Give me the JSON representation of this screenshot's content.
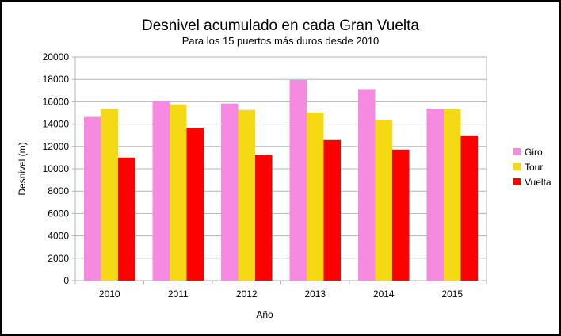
{
  "chart_data": {
    "type": "bar",
    "title": "Desnivel acumulado en cada Gran Vuelta",
    "subtitle": "Para los 15 puertos más duros desde 2010",
    "xlabel": "Año",
    "ylabel": "Desnivel (m)",
    "ylim": [
      0,
      20000
    ],
    "yticks": [
      0,
      2000,
      4000,
      6000,
      8000,
      10000,
      12000,
      14000,
      16000,
      18000,
      20000
    ],
    "grid": true,
    "legend_position": "right",
    "categories": [
      "2010",
      "2011",
      "2012",
      "2013",
      "2014",
      "2015"
    ],
    "series": [
      {
        "name": "Giro",
        "color": "#f58ae0",
        "values": [
          14640,
          16090,
          15840,
          17950,
          17130,
          15390
        ]
      },
      {
        "name": "Tour",
        "color": "#f5d912",
        "values": [
          15370,
          15770,
          15270,
          15040,
          14350,
          15320
        ]
      },
      {
        "name": "Vuelta",
        "color": "#ff0000",
        "values": [
          11010,
          13690,
          11270,
          12570,
          11720,
          12990
        ]
      }
    ]
  }
}
